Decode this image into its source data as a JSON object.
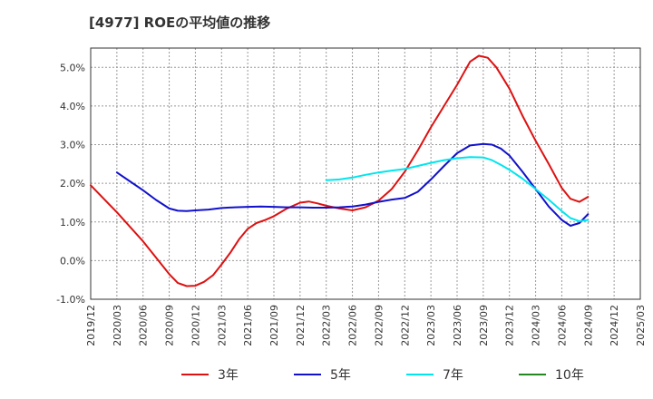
{
  "chart_data": {
    "type": "line",
    "title": "[4977]  ROEの平均値の推移",
    "xlabel": "",
    "ylabel": "",
    "ylim": [
      -1.0,
      5.5
    ],
    "y_ticks": [
      -1.0,
      0.0,
      1.0,
      2.0,
      3.0,
      4.0,
      5.0
    ],
    "y_tick_labels": [
      "-1.0%",
      "0.0%",
      "1.0%",
      "2.0%",
      "3.0%",
      "4.0%",
      "5.0%"
    ],
    "x_tick_labels": [
      "2019/12",
      "2020/03",
      "2020/06",
      "2020/09",
      "2020/12",
      "2021/03",
      "2021/06",
      "2021/09",
      "2021/12",
      "2022/03",
      "2022/06",
      "2022/09",
      "2022/12",
      "2023/03",
      "2023/06",
      "2023/09",
      "2023/12",
      "2024/03",
      "2024/06",
      "2024/09",
      "2024/12",
      "2025/03"
    ],
    "grid": true,
    "legend_position": "bottom",
    "series": [
      {
        "name": "3年",
        "color": "#dd1111",
        "points": [
          [
            0,
            1.95
          ],
          [
            1,
            1.25
          ],
          [
            2,
            0.5
          ],
          [
            3,
            -0.35
          ],
          [
            3.33,
            -0.58
          ],
          [
            3.67,
            -0.66
          ],
          [
            4,
            -0.65
          ],
          [
            4.33,
            -0.55
          ],
          [
            4.67,
            -0.38
          ],
          [
            5,
            -0.1
          ],
          [
            5.33,
            0.2
          ],
          [
            5.67,
            0.55
          ],
          [
            6,
            0.82
          ],
          [
            6.33,
            0.97
          ],
          [
            6.67,
            1.05
          ],
          [
            7,
            1.15
          ],
          [
            7.5,
            1.35
          ],
          [
            8,
            1.5
          ],
          [
            8.33,
            1.53
          ],
          [
            8.67,
            1.48
          ],
          [
            9,
            1.42
          ],
          [
            9.5,
            1.35
          ],
          [
            10,
            1.3
          ],
          [
            10.5,
            1.38
          ],
          [
            11,
            1.55
          ],
          [
            11.5,
            1.85
          ],
          [
            12,
            2.3
          ],
          [
            12.5,
            2.85
          ],
          [
            13,
            3.45
          ],
          [
            13.5,
            4.0
          ],
          [
            14,
            4.55
          ],
          [
            14.5,
            5.15
          ],
          [
            14.83,
            5.3
          ],
          [
            15.17,
            5.25
          ],
          [
            15.5,
            5.0
          ],
          [
            16,
            4.45
          ],
          [
            16.5,
            3.75
          ],
          [
            17,
            3.1
          ],
          [
            17.5,
            2.5
          ],
          [
            18,
            1.88
          ],
          [
            18.33,
            1.6
          ],
          [
            18.67,
            1.52
          ],
          [
            19,
            1.65
          ]
        ]
      },
      {
        "name": "5年",
        "color": "#1111cc",
        "points": [
          [
            1,
            2.28
          ],
          [
            1.5,
            2.05
          ],
          [
            2,
            1.82
          ],
          [
            2.5,
            1.57
          ],
          [
            3,
            1.35
          ],
          [
            3.33,
            1.29
          ],
          [
            3.67,
            1.28
          ],
          [
            4,
            1.3
          ],
          [
            4.5,
            1.32
          ],
          [
            5,
            1.36
          ],
          [
            5.5,
            1.38
          ],
          [
            6,
            1.39
          ],
          [
            6.5,
            1.4
          ],
          [
            7,
            1.39
          ],
          [
            7.5,
            1.38
          ],
          [
            8,
            1.38
          ],
          [
            8.5,
            1.37
          ],
          [
            9,
            1.37
          ],
          [
            9.5,
            1.38
          ],
          [
            10,
            1.4
          ],
          [
            10.5,
            1.45
          ],
          [
            11,
            1.52
          ],
          [
            11.5,
            1.58
          ],
          [
            12,
            1.62
          ],
          [
            12.5,
            1.78
          ],
          [
            13,
            2.1
          ],
          [
            13.5,
            2.45
          ],
          [
            14,
            2.78
          ],
          [
            14.5,
            2.98
          ],
          [
            15,
            3.02
          ],
          [
            15.33,
            3.0
          ],
          [
            15.67,
            2.9
          ],
          [
            16,
            2.72
          ],
          [
            16.5,
            2.3
          ],
          [
            17,
            1.85
          ],
          [
            17.5,
            1.4
          ],
          [
            18,
            1.05
          ],
          [
            18.33,
            0.9
          ],
          [
            18.67,
            0.97
          ],
          [
            19,
            1.2
          ]
        ]
      },
      {
        "name": "7年",
        "color": "#00e5ee",
        "points": [
          [
            9,
            2.08
          ],
          [
            9.5,
            2.1
          ],
          [
            10,
            2.15
          ],
          [
            10.5,
            2.22
          ],
          [
            11,
            2.28
          ],
          [
            11.5,
            2.33
          ],
          [
            12,
            2.37
          ],
          [
            12.5,
            2.45
          ],
          [
            13,
            2.53
          ],
          [
            13.5,
            2.6
          ],
          [
            14,
            2.65
          ],
          [
            14.5,
            2.68
          ],
          [
            15,
            2.67
          ],
          [
            15.33,
            2.6
          ],
          [
            15.67,
            2.48
          ],
          [
            16,
            2.35
          ],
          [
            16.5,
            2.12
          ],
          [
            17,
            1.85
          ],
          [
            17.5,
            1.58
          ],
          [
            18,
            1.28
          ],
          [
            18.33,
            1.1
          ],
          [
            18.67,
            1.02
          ],
          [
            19,
            1.05
          ]
        ]
      },
      {
        "name": "10年",
        "color": "#228822",
        "points": []
      }
    ]
  }
}
